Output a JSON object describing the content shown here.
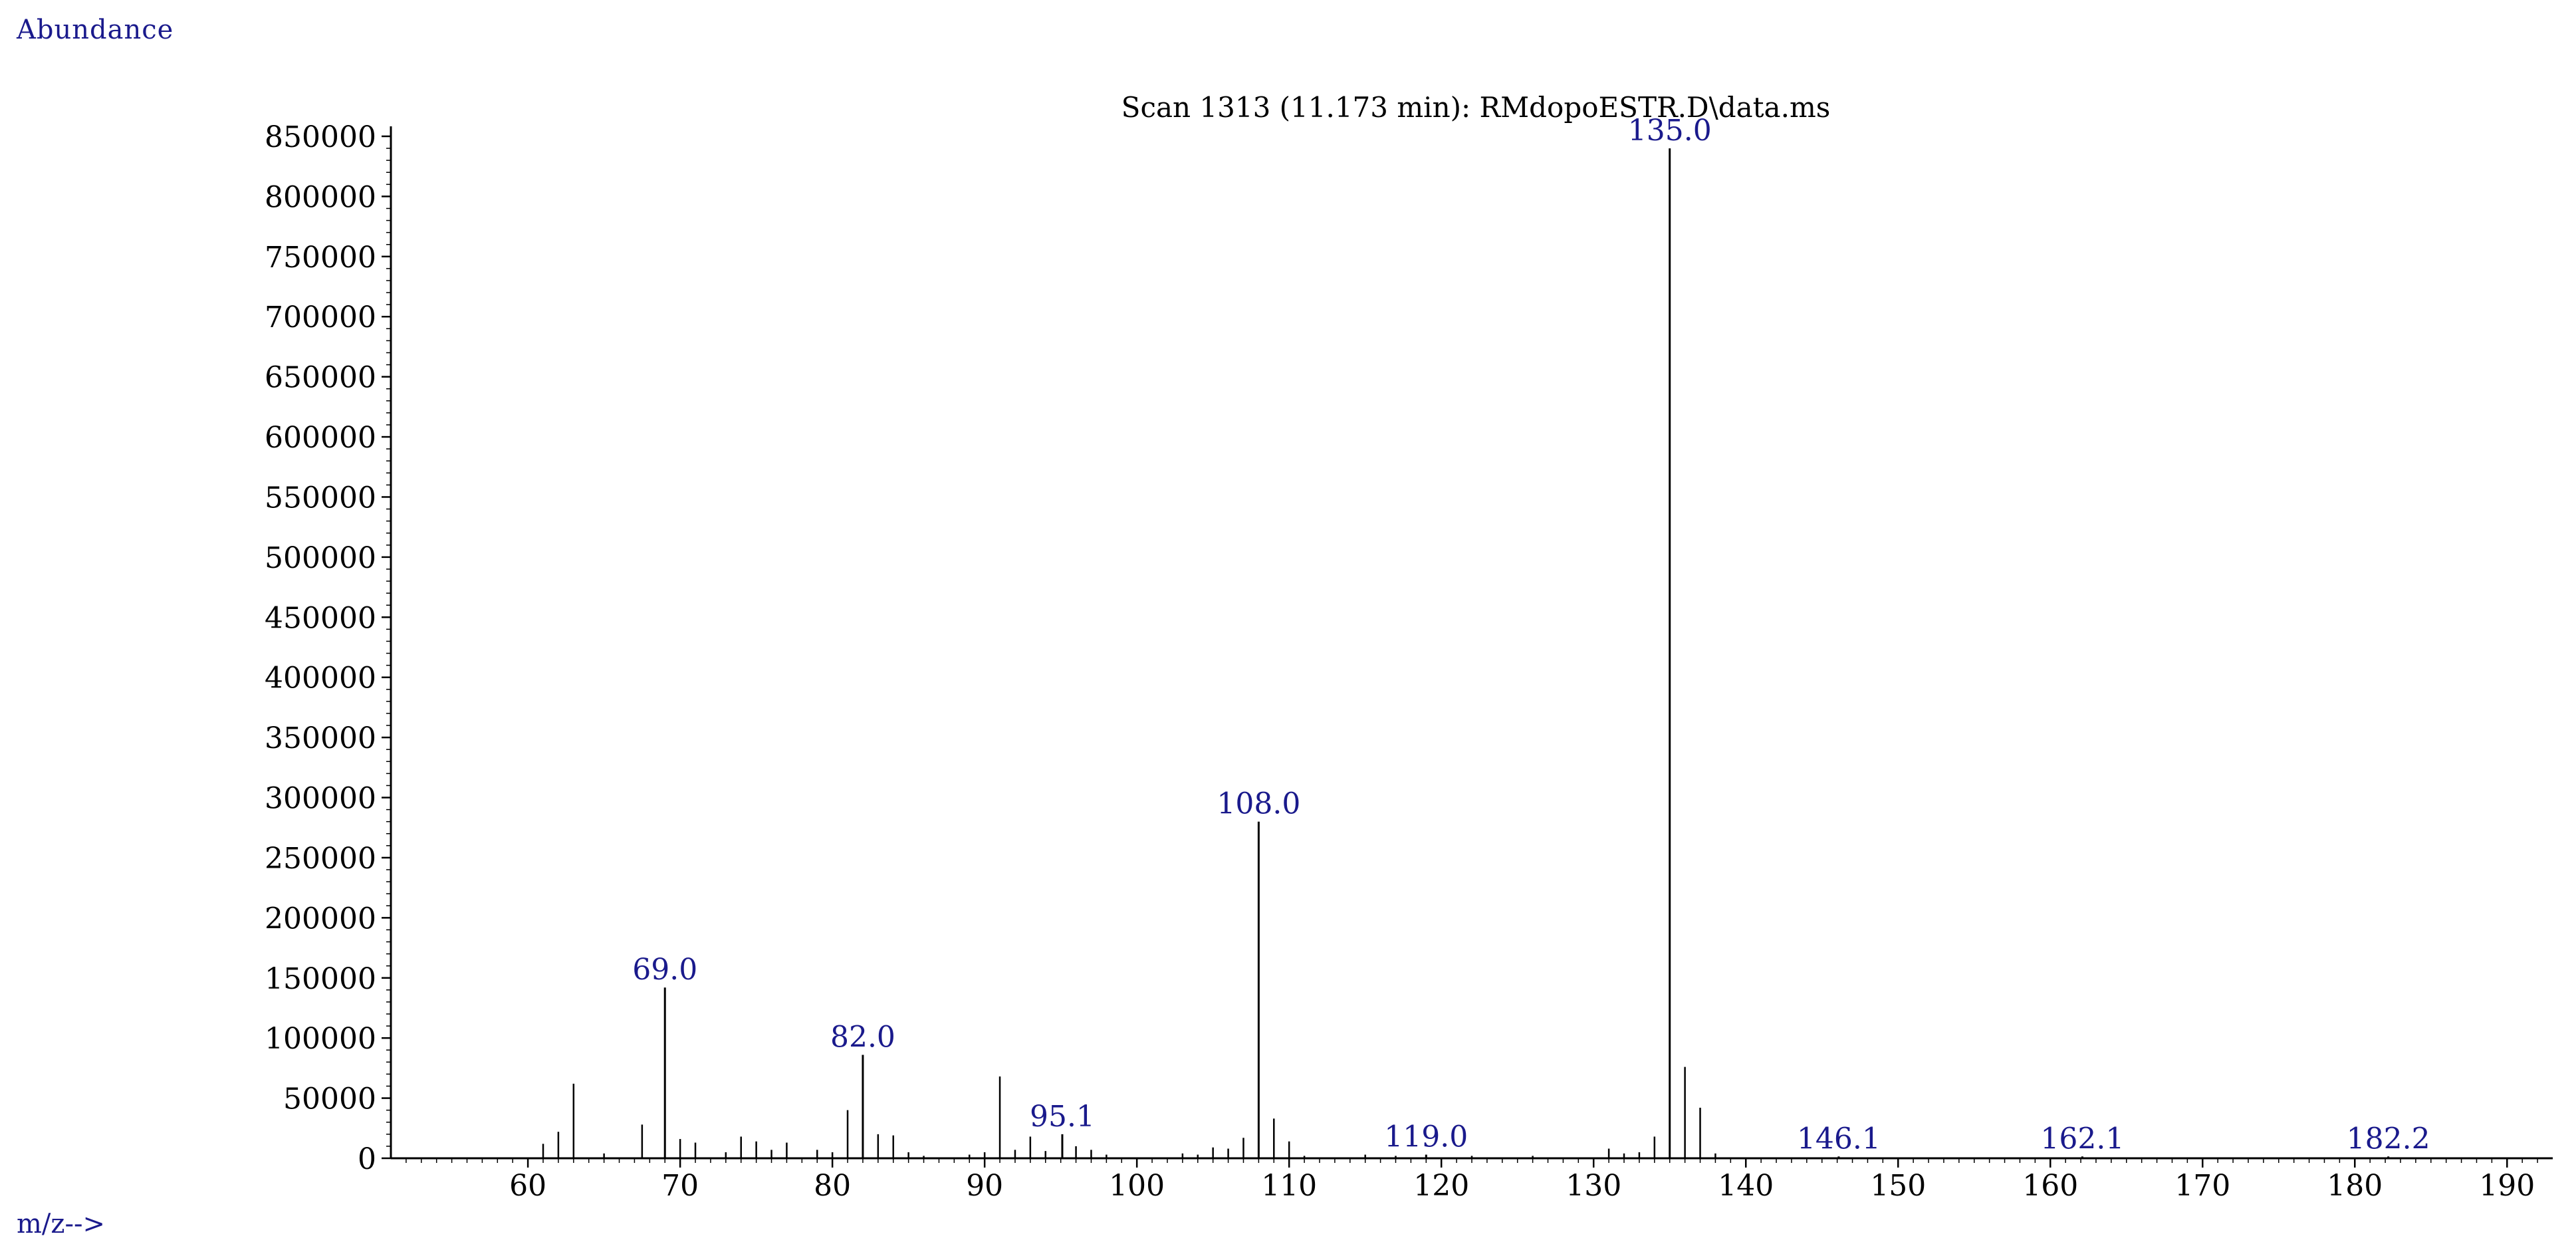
{
  "header": {
    "ylabel": "Abundance",
    "xlabel": "m/z-->"
  },
  "chart_data": {
    "type": "bar",
    "title": "Scan 1313 (11.173 min): RMdopoESTR.D\\data.ms",
    "xlabel": "m/z-->",
    "ylabel": "Abundance",
    "xlim": [
      51,
      193
    ],
    "ylim": [
      0,
      850000
    ],
    "xticks": [
      60,
      70,
      80,
      90,
      100,
      110,
      120,
      130,
      140,
      150,
      160,
      170,
      180,
      190
    ],
    "yticks": [
      0,
      50000,
      100000,
      150000,
      200000,
      250000,
      300000,
      350000,
      400000,
      450000,
      500000,
      550000,
      600000,
      650000,
      700000,
      750000,
      800000,
      850000
    ],
    "grid": false,
    "legend": "none",
    "peaks": [
      {
        "mz": 61,
        "abundance": 12000
      },
      {
        "mz": 62,
        "abundance": 22000
      },
      {
        "mz": 63,
        "abundance": 62000
      },
      {
        "mz": 65,
        "abundance": 4000
      },
      {
        "mz": 67.5,
        "abundance": 28000
      },
      {
        "mz": 69.0,
        "abundance": 142000,
        "label": "69.0"
      },
      {
        "mz": 70,
        "abundance": 16000
      },
      {
        "mz": 71,
        "abundance": 13000
      },
      {
        "mz": 73,
        "abundance": 5000
      },
      {
        "mz": 74,
        "abundance": 18000
      },
      {
        "mz": 75,
        "abundance": 14000
      },
      {
        "mz": 76,
        "abundance": 7000
      },
      {
        "mz": 77,
        "abundance": 13000
      },
      {
        "mz": 79,
        "abundance": 7000
      },
      {
        "mz": 80,
        "abundance": 5000
      },
      {
        "mz": 81,
        "abundance": 40000
      },
      {
        "mz": 82.0,
        "abundance": 86000,
        "label": "82.0"
      },
      {
        "mz": 83,
        "abundance": 20000
      },
      {
        "mz": 84,
        "abundance": 19000
      },
      {
        "mz": 85,
        "abundance": 5000
      },
      {
        "mz": 86,
        "abundance": 2000
      },
      {
        "mz": 89,
        "abundance": 3000
      },
      {
        "mz": 90,
        "abundance": 5000
      },
      {
        "mz": 91,
        "abundance": 68000
      },
      {
        "mz": 92,
        "abundance": 7000
      },
      {
        "mz": 93,
        "abundance": 18000
      },
      {
        "mz": 94,
        "abundance": 6000
      },
      {
        "mz": 95.1,
        "abundance": 20000,
        "label": "95.1"
      },
      {
        "mz": 96,
        "abundance": 10000
      },
      {
        "mz": 97,
        "abundance": 7000
      },
      {
        "mz": 98,
        "abundance": 3000
      },
      {
        "mz": 103,
        "abundance": 4000
      },
      {
        "mz": 104,
        "abundance": 3000
      },
      {
        "mz": 105,
        "abundance": 9000
      },
      {
        "mz": 106,
        "abundance": 8000
      },
      {
        "mz": 107,
        "abundance": 17000
      },
      {
        "mz": 108.0,
        "abundance": 280000,
        "label": "108.0"
      },
      {
        "mz": 109,
        "abundance": 33000
      },
      {
        "mz": 110,
        "abundance": 14000
      },
      {
        "mz": 111,
        "abundance": 2000
      },
      {
        "mz": 115,
        "abundance": 3000
      },
      {
        "mz": 117,
        "abundance": 2000
      },
      {
        "mz": 119.0,
        "abundance": 3000,
        "label": "119.0"
      },
      {
        "mz": 122,
        "abundance": 2000
      },
      {
        "mz": 126,
        "abundance": 2000
      },
      {
        "mz": 131,
        "abundance": 8000
      },
      {
        "mz": 132,
        "abundance": 4000
      },
      {
        "mz": 133,
        "abundance": 5000
      },
      {
        "mz": 134,
        "abundance": 18000
      },
      {
        "mz": 135.0,
        "abundance": 840000,
        "label": "135.0"
      },
      {
        "mz": 136,
        "abundance": 76000
      },
      {
        "mz": 137,
        "abundance": 42000
      },
      {
        "mz": 138,
        "abundance": 4000
      },
      {
        "mz": 146.1,
        "abundance": 1500,
        "label": "146.1"
      },
      {
        "mz": 162.1,
        "abundance": 1500,
        "label": "162.1"
      },
      {
        "mz": 182.2,
        "abundance": 1500,
        "label": "182.2"
      }
    ]
  }
}
